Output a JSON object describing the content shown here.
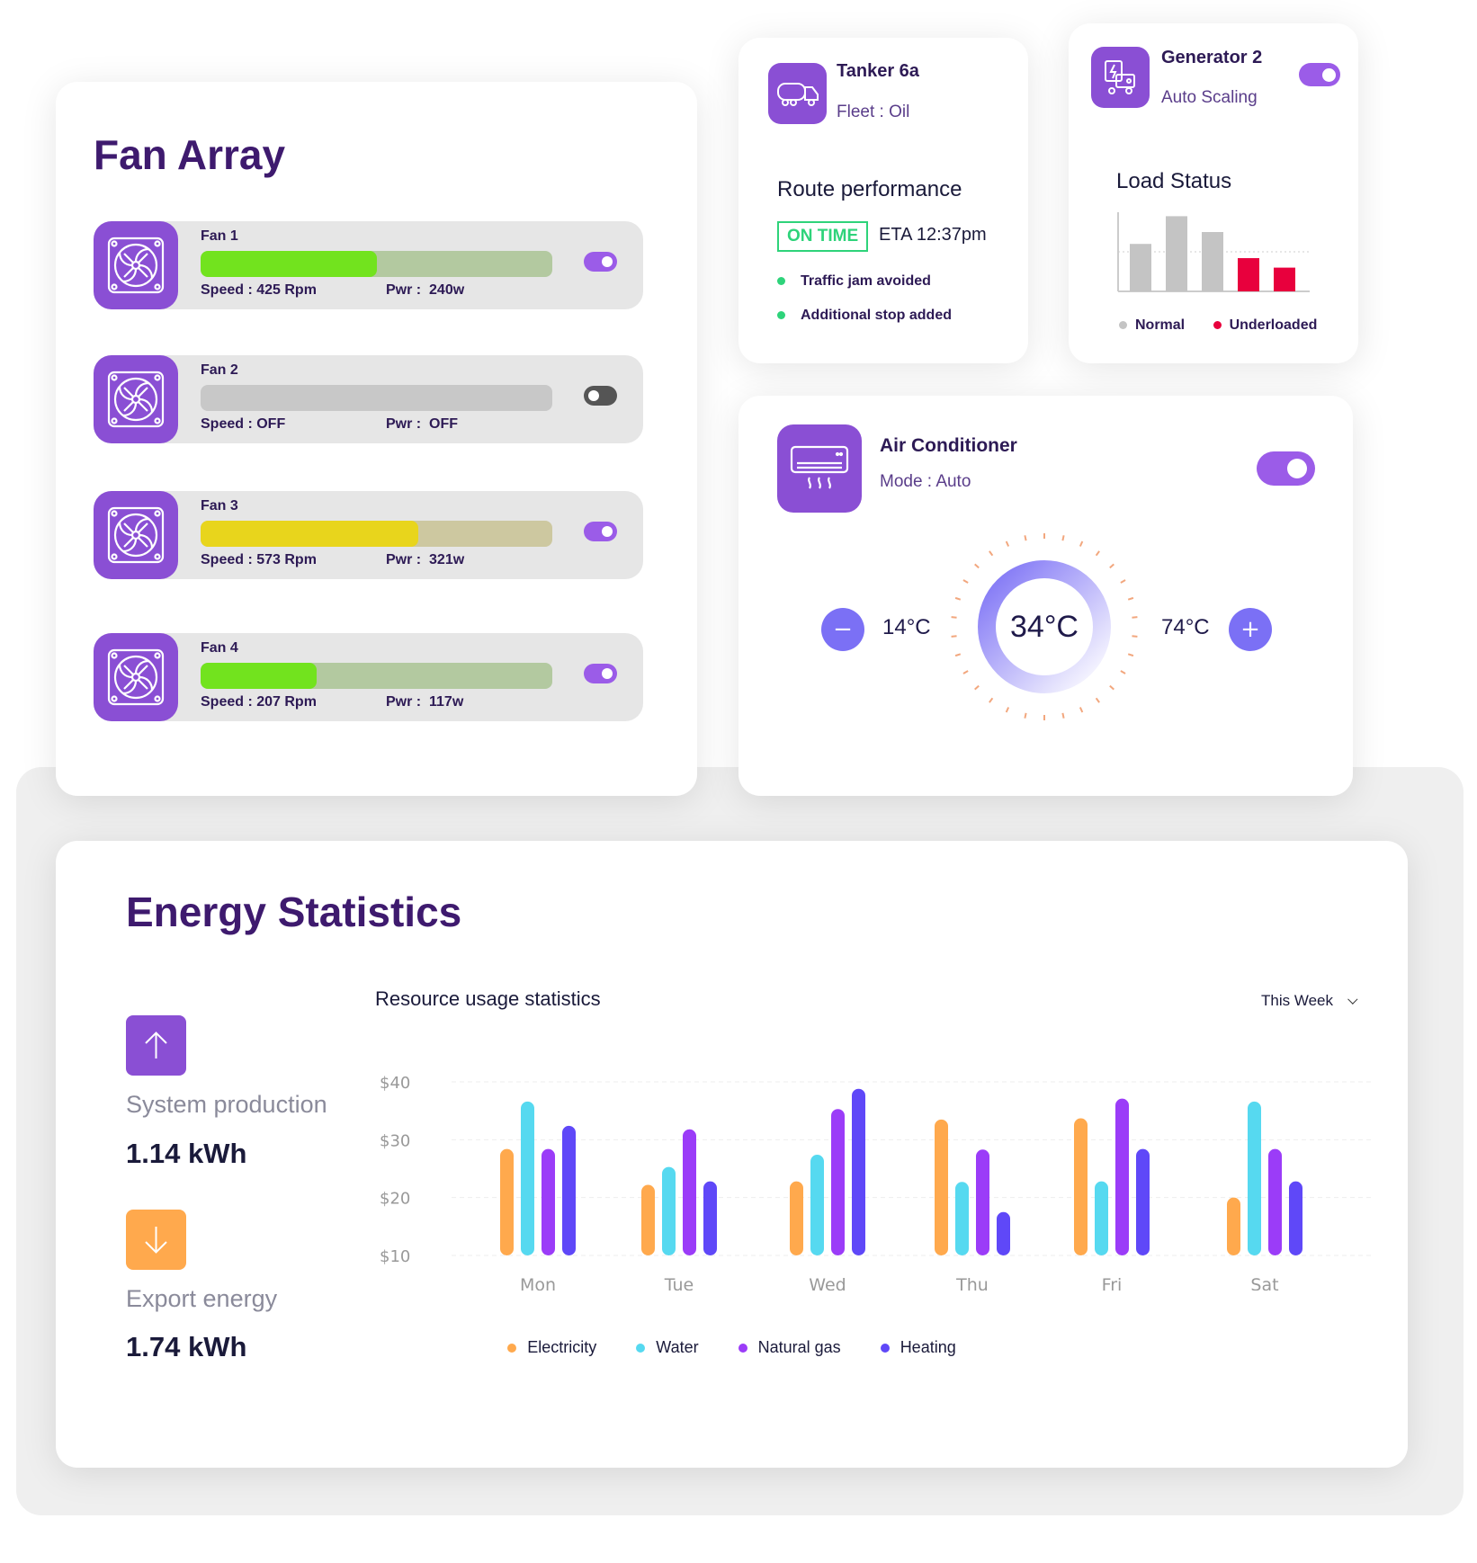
{
  "fan_array": {
    "title": "Fan Array",
    "fans": [
      {
        "name": "Fan 1",
        "speed": "Speed : 425 Rpm",
        "pwr_label": "Pwr :",
        "pwr": "240w",
        "progress": 0.5,
        "fill": "#72e31e",
        "track": "#b3c9a0",
        "on": true
      },
      {
        "name": "Fan 2",
        "speed": "Speed : OFF",
        "pwr_label": "Pwr :",
        "pwr": "OFF",
        "progress": 0,
        "fill": "#c8c8c8",
        "track": "#c8c8c8",
        "on": false
      },
      {
        "name": "Fan 3",
        "speed": "Speed : 573 Rpm",
        "pwr_label": "Pwr :",
        "pwr": "321w",
        "progress": 0.62,
        "fill": "#e8d51c",
        "track": "#cdc8a0",
        "on": true
      },
      {
        "name": "Fan 4",
        "speed": "Speed : 207 Rpm",
        "pwr_label": "Pwr :",
        "pwr": "117w",
        "progress": 0.33,
        "fill": "#72e31e",
        "track": "#b3c9a0",
        "on": true
      }
    ]
  },
  "tanker": {
    "name": "Tanker 6a",
    "fleet": "Fleet : Oil",
    "section": "Route performance",
    "status": "ON TIME",
    "eta": "ETA 12:37pm",
    "events": [
      "Traffic jam avoided",
      "Additional stop added"
    ]
  },
  "generator": {
    "name": "Generator 2",
    "mode": "Auto Scaling",
    "on": true,
    "section": "Load Status",
    "bars": [
      {
        "value": 0.6,
        "status": "normal"
      },
      {
        "value": 0.95,
        "status": "normal"
      },
      {
        "value": 0.75,
        "status": "normal"
      },
      {
        "value": 0.42,
        "status": "underloaded"
      },
      {
        "value": 0.3,
        "status": "underloaded"
      }
    ],
    "legend": [
      "Normal",
      "Underloaded"
    ],
    "colors": {
      "normal": "#c4c4c4",
      "underloaded": "#e8003d"
    }
  },
  "ac": {
    "name": "Air Conditioner",
    "mode": "Mode : Auto",
    "on": true,
    "min": "14°C",
    "current": "34°C",
    "max": "74°C",
    "minus": "−",
    "plus": "+"
  },
  "energy": {
    "title": "Energy Statistics",
    "production": {
      "label": "System production",
      "value": "1.14 kWh"
    },
    "export": {
      "label": "Export energy",
      "value": "1.74 kWh"
    },
    "period": "This Week"
  },
  "chart_data": {
    "type": "bar",
    "title": "Resource usage statistics",
    "categories": [
      "Mon",
      "Tue",
      "Wed",
      "Thu",
      "Fri",
      "Sat"
    ],
    "series": [
      {
        "name": "Electricity",
        "color": "#ffa94d",
        "values": [
          28.4,
          22.2,
          22.8,
          33.5,
          33.7,
          20
        ]
      },
      {
        "name": "Water",
        "color": "#56d9f0",
        "values": [
          36.6,
          25.3,
          27.4,
          22.7,
          22.8,
          36.6
        ]
      },
      {
        "name": "Natural gas",
        "color": "#9b3cf8",
        "values": [
          28.4,
          31.8,
          35.3,
          28.3,
          37.1,
          28.4
        ]
      },
      {
        "name": "Heating",
        "color": "#5f48f8",
        "values": [
          32.4,
          22.8,
          38.8,
          17.5,
          28.4,
          22.8
        ]
      }
    ],
    "yticks": [
      "$10",
      "$20",
      "$30",
      "$40"
    ],
    "ytick_values": [
      10,
      20,
      30,
      40
    ],
    "ylim": [
      10,
      40
    ],
    "grid": true,
    "legend": "bottom"
  }
}
